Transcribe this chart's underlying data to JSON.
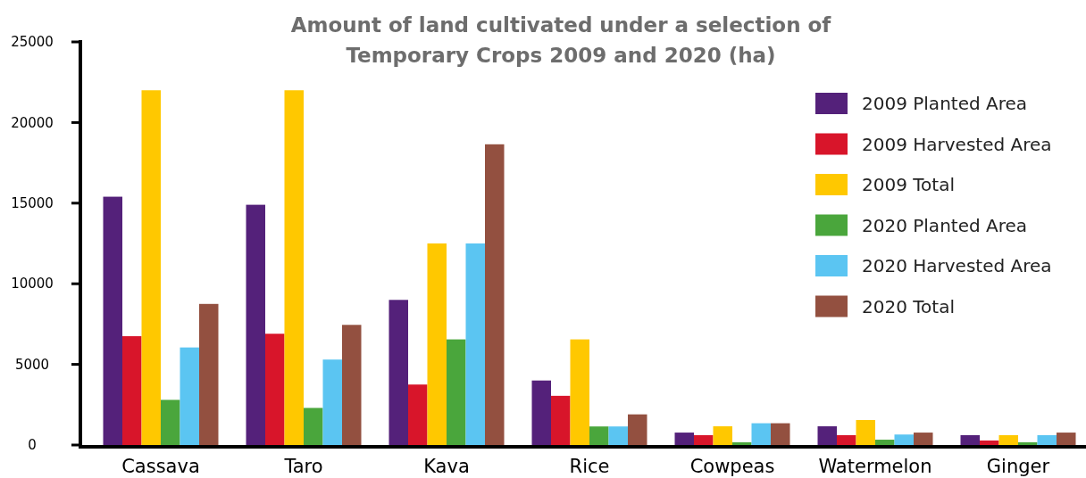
{
  "chart_data": {
    "type": "bar",
    "title": "Amount of land cultivated under a selection of Temporary Crops 2009 and 2020 (ha)",
    "categories": [
      "Cassava",
      "Taro",
      "Kava",
      "Rice",
      "Cowpeas",
      "Watermelon",
      "Ginger"
    ],
    "series": [
      {
        "name": "2009 Planted Area",
        "color": "#54217a",
        "values": [
          15400,
          14900,
          9000,
          4000,
          770,
          1160,
          610
        ]
      },
      {
        "name": "2009 Harvested Area",
        "color": "#d8152a",
        "values": [
          6750,
          6900,
          3750,
          3050,
          610,
          610,
          280
        ]
      },
      {
        "name": "2009 Total",
        "color": "#ffc800",
        "values": [
          22000,
          22000,
          12500,
          6550,
          1160,
          1550,
          610
        ]
      },
      {
        "name": "2020 Planted Area",
        "color": "#4aa63c",
        "values": [
          2800,
          2300,
          6550,
          1150,
          170,
          330,
          170
        ]
      },
      {
        "name": "2020 Harvested Area",
        "color": "#5bc5f2",
        "values": [
          6050,
          5300,
          12500,
          1150,
          1350,
          650,
          610
        ]
      },
      {
        "name": "2020 Total",
        "color": "#935040",
        "values": [
          8750,
          7450,
          18650,
          1900,
          1350,
          770,
          770
        ]
      }
    ],
    "ylim": [
      0,
      25000
    ],
    "yticks": [
      0,
      5000,
      10000,
      15000,
      20000,
      25000
    ],
    "grid": false,
    "legend": "top right"
  }
}
